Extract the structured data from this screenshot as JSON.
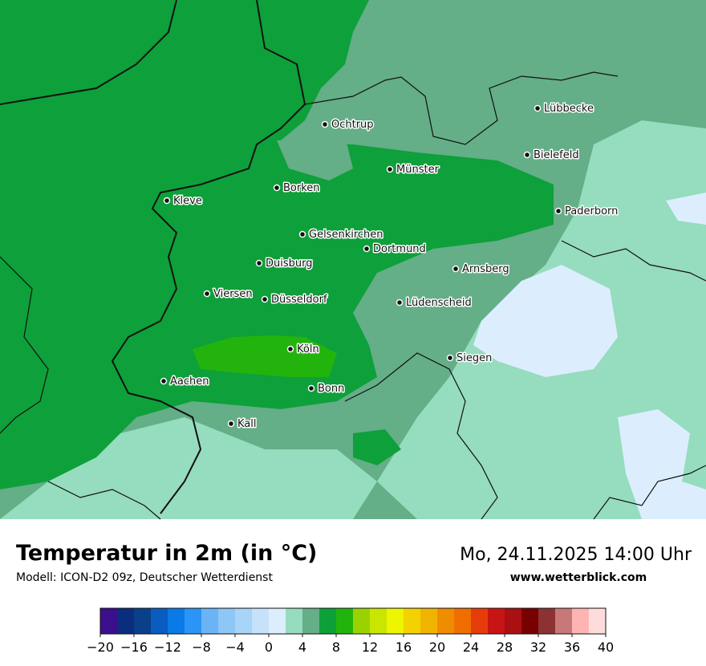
{
  "header": {
    "title": "Temperatur in 2m (in °C)",
    "subtitle": "Modell: ICON-D2 09z, Deutscher Wetterdienst",
    "datetime": "Mo, 24.11.2025 14:00 Uhr",
    "website": "www.wetterblick.com"
  },
  "cities": [
    "Ochtrup",
    "Lübbecke",
    "Bielefeld",
    "Münster",
    "Borken",
    "Kleve",
    "Paderborn",
    "Gelsenkirchen",
    "Dortmund",
    "Duisburg",
    "Arnsberg",
    "Viersen",
    "Düsseldorf",
    "Lüdenscheid",
    "Köln",
    "Siegen",
    "Aachen",
    "Bonn",
    "Kall"
  ],
  "colorbar": {
    "levels": [
      -20,
      -18,
      -16,
      -14,
      -12,
      -10,
      -8,
      -6,
      -4,
      -2,
      0,
      2,
      4,
      6,
      8,
      10,
      12,
      14,
      16,
      18,
      20,
      22,
      24,
      26,
      28,
      30,
      32,
      34,
      36,
      38,
      40
    ],
    "colors": [
      "#3b0f8c",
      "#0b2d7d",
      "#0a3f8a",
      "#0a5cbf",
      "#0a7ae6",
      "#2a95f5",
      "#6ab4f5",
      "#8ec6f5",
      "#a8d4f8",
      "#c6e2fa",
      "#dceefe",
      "#96dcbe",
      "#64ae88",
      "#0ea03a",
      "#22b40c",
      "#9ad200",
      "#c8e600",
      "#eef500",
      "#f2d200",
      "#f0b400",
      "#f08c00",
      "#f06e00",
      "#e63c0a",
      "#c81414",
      "#aa0f14",
      "#780000",
      "#8c3232",
      "#c87878",
      "#ffb4b4",
      "#ffdcdc"
    ],
    "ticks": [
      {
        "value": -20,
        "label": "−20"
      },
      {
        "value": -16,
        "label": "−16"
      },
      {
        "value": -12,
        "label": "−12"
      },
      {
        "value": -8,
        "label": "−8"
      },
      {
        "value": -4,
        "label": "−4"
      },
      0,
      4,
      8,
      12,
      16,
      20,
      24,
      28,
      32,
      36,
      40
    ]
  }
}
